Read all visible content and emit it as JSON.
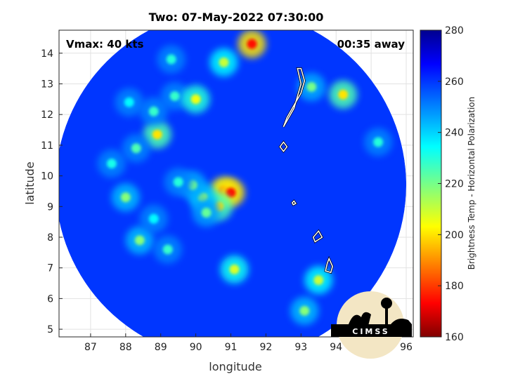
{
  "chart_data": {
    "type": "heatmap",
    "title": "Two: 07-May-2022 07:30:00",
    "xlabel": "longitude",
    "ylabel": "latitude",
    "xlim": [
      86.1,
      96.2
    ],
    "ylim": [
      4.75,
      14.75
    ],
    "xticks": [
      87,
      88,
      89,
      90,
      91,
      92,
      93,
      94,
      95,
      96
    ],
    "yticks": [
      5,
      6,
      7,
      8,
      9,
      10,
      11,
      12,
      13,
      14
    ],
    "grid": true,
    "annotations": {
      "vmax": "Vmax: 40 kts",
      "away": "00:35 away"
    },
    "colorbar": {
      "label": "Brightness Temp - Horizontal Polarization",
      "min": 160,
      "max": 280,
      "ticks": [
        160,
        180,
        200,
        220,
        240,
        260,
        280
      ],
      "colormap": "jet"
    },
    "swath": {
      "center": [
        91.0,
        9.7
      ],
      "radius_deg": 5.0,
      "background_tb": 260
    },
    "features": [
      {
        "lon": 90.8,
        "lat": 9.5,
        "tb": 178
      },
      {
        "lon": 91.0,
        "lat": 9.45,
        "tb": 175
      },
      {
        "lon": 90.65,
        "lat": 9.0,
        "tb": 200
      },
      {
        "lon": 90.2,
        "lat": 9.3,
        "tb": 215
      },
      {
        "lon": 89.9,
        "lat": 9.7,
        "tb": 220
      },
      {
        "lon": 90.3,
        "lat": 8.8,
        "tb": 222
      },
      {
        "lon": 89.5,
        "lat": 9.8,
        "tb": 230
      },
      {
        "lon": 88.9,
        "lat": 11.35,
        "tb": 200
      },
      {
        "lon": 88.3,
        "lat": 10.9,
        "tb": 225
      },
      {
        "lon": 88.8,
        "lat": 12.1,
        "tb": 228
      },
      {
        "lon": 89.4,
        "lat": 12.6,
        "tb": 228
      },
      {
        "lon": 88.0,
        "lat": 9.3,
        "tb": 218
      },
      {
        "lon": 87.6,
        "lat": 10.4,
        "tb": 232
      },
      {
        "lon": 88.4,
        "lat": 7.9,
        "tb": 218
      },
      {
        "lon": 89.2,
        "lat": 7.6,
        "tb": 228
      },
      {
        "lon": 88.8,
        "lat": 8.6,
        "tb": 235
      },
      {
        "lon": 90.0,
        "lat": 12.5,
        "tb": 205
      },
      {
        "lon": 90.8,
        "lat": 13.7,
        "tb": 210
      },
      {
        "lon": 91.6,
        "lat": 14.3,
        "tb": 175
      },
      {
        "lon": 93.3,
        "lat": 12.9,
        "tb": 220
      },
      {
        "lon": 94.2,
        "lat": 12.65,
        "tb": 200
      },
      {
        "lon": 95.2,
        "lat": 11.1,
        "tb": 230
      },
      {
        "lon": 93.5,
        "lat": 6.6,
        "tb": 210
      },
      {
        "lon": 93.1,
        "lat": 5.6,
        "tb": 218
      },
      {
        "lon": 91.1,
        "lat": 6.95,
        "tb": 208
      },
      {
        "lon": 89.3,
        "lat": 13.8,
        "tb": 230
      },
      {
        "lon": 88.1,
        "lat": 12.4,
        "tb": 235
      }
    ],
    "contours": [
      [
        [
          92.9,
          13.5
        ],
        [
          93.0,
          13.0
        ],
        [
          92.9,
          12.6
        ],
        [
          92.8,
          12.2
        ],
        [
          92.6,
          11.8
        ],
        [
          92.5,
          11.6
        ],
        [
          92.6,
          11.9
        ],
        [
          92.8,
          12.3
        ],
        [
          93.0,
          12.7
        ],
        [
          93.1,
          13.1
        ],
        [
          93.0,
          13.5
        ],
        [
          92.9,
          13.5
        ]
      ],
      [
        [
          92.5,
          11.1
        ],
        [
          92.6,
          10.95
        ],
        [
          92.5,
          10.8
        ],
        [
          92.4,
          10.95
        ],
        [
          92.5,
          11.1
        ]
      ],
      [
        [
          92.8,
          9.18
        ],
        [
          92.85,
          9.1
        ],
        [
          92.78,
          9.06
        ],
        [
          92.75,
          9.12
        ],
        [
          92.8,
          9.18
        ]
      ],
      [
        [
          93.5,
          8.2
        ],
        [
          93.6,
          8.0
        ],
        [
          93.4,
          7.85
        ],
        [
          93.35,
          8.0
        ],
        [
          93.5,
          8.2
        ]
      ],
      [
        [
          93.8,
          7.3
        ],
        [
          93.9,
          7.05
        ],
        [
          93.85,
          6.85
        ],
        [
          93.7,
          6.9
        ],
        [
          93.75,
          7.15
        ],
        [
          93.8,
          7.3
        ]
      ]
    ]
  },
  "logo": {
    "text": "CIMSS"
  }
}
